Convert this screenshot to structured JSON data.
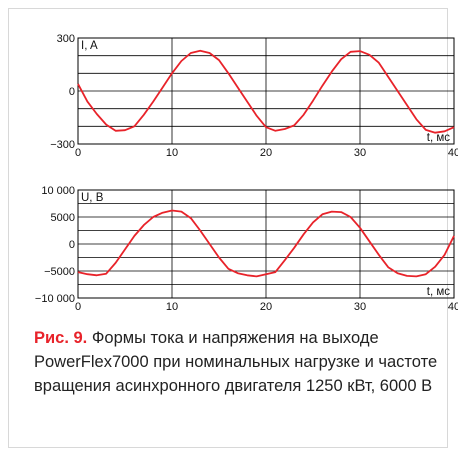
{
  "accent_color": "#e8232a",
  "chart_data": [
    {
      "type": "line",
      "ylabel": "I, A",
      "xlabel": "t, мс",
      "xlim": [
        0,
        40
      ],
      "ylim": [
        -300,
        300
      ],
      "x_ticks": [
        0,
        10,
        20,
        30,
        40
      ],
      "y_ticks": [
        {
          "value": 300,
          "label": "300"
        },
        {
          "value": 0,
          "label": "0"
        },
        {
          "value": -300,
          "label": "−300"
        }
      ],
      "grid": true,
      "series": [
        {
          "color": "#e8232a",
          "x": [
            0,
            1,
            2,
            3,
            4,
            5,
            6,
            7,
            8,
            9,
            10,
            11,
            12,
            13,
            14,
            15,
            16,
            17,
            18,
            19,
            20,
            21,
            22,
            23,
            24,
            25,
            26,
            27,
            28,
            29,
            30,
            31,
            32,
            33,
            34,
            35,
            36,
            37,
            38,
            39,
            40
          ],
          "y": [
            40,
            -60,
            -130,
            -190,
            -225,
            -222,
            -200,
            -135,
            -60,
            20,
            100,
            170,
            215,
            228,
            215,
            175,
            100,
            20,
            -60,
            -140,
            -205,
            -225,
            -215,
            -195,
            -135,
            -55,
            30,
            110,
            180,
            222,
            226,
            205,
            160,
            80,
            0,
            -80,
            -160,
            -220,
            -236,
            -228,
            -205
          ]
        }
      ]
    },
    {
      "type": "line",
      "ylabel": "U, В",
      "xlabel": "t, мс",
      "xlim": [
        0,
        40
      ],
      "ylim": [
        -10000,
        10000
      ],
      "x_ticks": [
        0,
        10,
        20,
        30,
        40
      ],
      "y_ticks": [
        {
          "value": 10000,
          "label": "10 000"
        },
        {
          "value": 5000,
          "label": "5000"
        },
        {
          "value": 0,
          "label": "0"
        },
        {
          "value": -5000,
          "label": "−5000"
        },
        {
          "value": -10000,
          "label": "−10 000"
        }
      ],
      "grid": true,
      "series": [
        {
          "color": "#e8232a",
          "x": [
            0,
            1,
            2,
            3,
            4,
            5,
            6,
            7,
            8,
            9,
            10,
            11,
            12,
            13,
            14,
            15,
            16,
            17,
            18,
            19,
            20,
            21,
            22,
            23,
            24,
            25,
            26,
            27,
            28,
            29,
            30,
            31,
            32,
            33,
            34,
            35,
            36,
            37,
            38,
            39,
            40
          ],
          "y": [
            -5200,
            -5600,
            -5800,
            -5500,
            -3500,
            -1000,
            1500,
            3500,
            5000,
            5800,
            6200,
            6000,
            4800,
            2500,
            0,
            -2500,
            -4600,
            -5400,
            -5800,
            -6000,
            -5600,
            -5200,
            -3000,
            -700,
            1800,
            4000,
            5500,
            6000,
            5900,
            5000,
            3000,
            500,
            -2000,
            -4300,
            -5400,
            -5900,
            -6000,
            -5600,
            -4200,
            -2000,
            1500
          ]
        }
      ]
    }
  ],
  "caption": {
    "label": "Рис. 9.",
    "text": " Формы тока и напряжения на выходе PowerFlex7000 при номинальных нагрузке и частоте вращения асинхронного двигателя 1250 кВт, 6000 В"
  }
}
